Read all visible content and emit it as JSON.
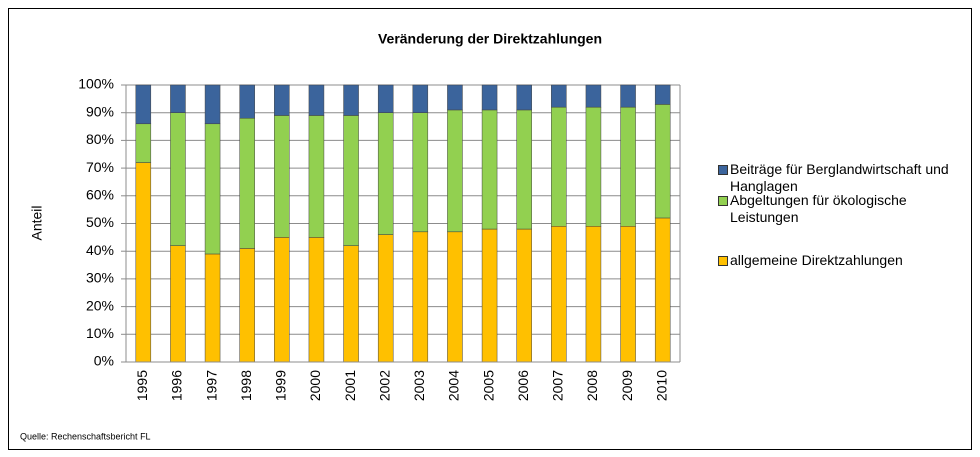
{
  "chart_data": {
    "type": "stacked_bar",
    "title": "Veränderung der Direktzahlungen",
    "y_label": "Anteil",
    "source": "Quelle: Rechenschaftsbericht  FL",
    "categories": [
      "1995",
      "1996",
      "1997",
      "1998",
      "1999",
      "2000",
      "2001",
      "2002",
      "2003",
      "2004",
      "2005",
      "2006",
      "2007",
      "2008",
      "2009",
      "2010"
    ],
    "series": [
      {
        "name": "allgemeine Direktzahlungen",
        "color": "#ffc000",
        "values": [
          72,
          42,
          39,
          41,
          45,
          45,
          42,
          46,
          47,
          47,
          48,
          48,
          49,
          49,
          49,
          52
        ]
      },
      {
        "name": "Abgeltungen für ökologische Leistungen",
        "color": "#92d050",
        "values": [
          14,
          48,
          47,
          47,
          44,
          44,
          47,
          44,
          43,
          44,
          43,
          43,
          43,
          43,
          43,
          41
        ]
      },
      {
        "name": "Beiträge für Berglandwirtschaft und Hanglagen",
        "color": "#3b649c",
        "values": [
          14,
          10,
          14,
          12,
          11,
          11,
          11,
          10,
          10,
          9,
          9,
          9,
          8,
          8,
          8,
          7
        ]
      }
    ],
    "ylim": [
      0,
      100
    ],
    "yticks": [
      {
        "value": 0,
        "label": "0%"
      },
      {
        "value": 10,
        "label": "10%"
      },
      {
        "value": 20,
        "label": "20%"
      },
      {
        "value": 30,
        "label": "30%"
      },
      {
        "value": 40,
        "label": "40%"
      },
      {
        "value": 50,
        "label": "50%"
      },
      {
        "value": 60,
        "label": "60%"
      },
      {
        "value": 70,
        "label": "70%"
      },
      {
        "value": 80,
        "label": "80%"
      },
      {
        "value": 90,
        "label": "90%"
      },
      {
        "value": 100,
        "label": "100%"
      }
    ],
    "grid": true
  }
}
